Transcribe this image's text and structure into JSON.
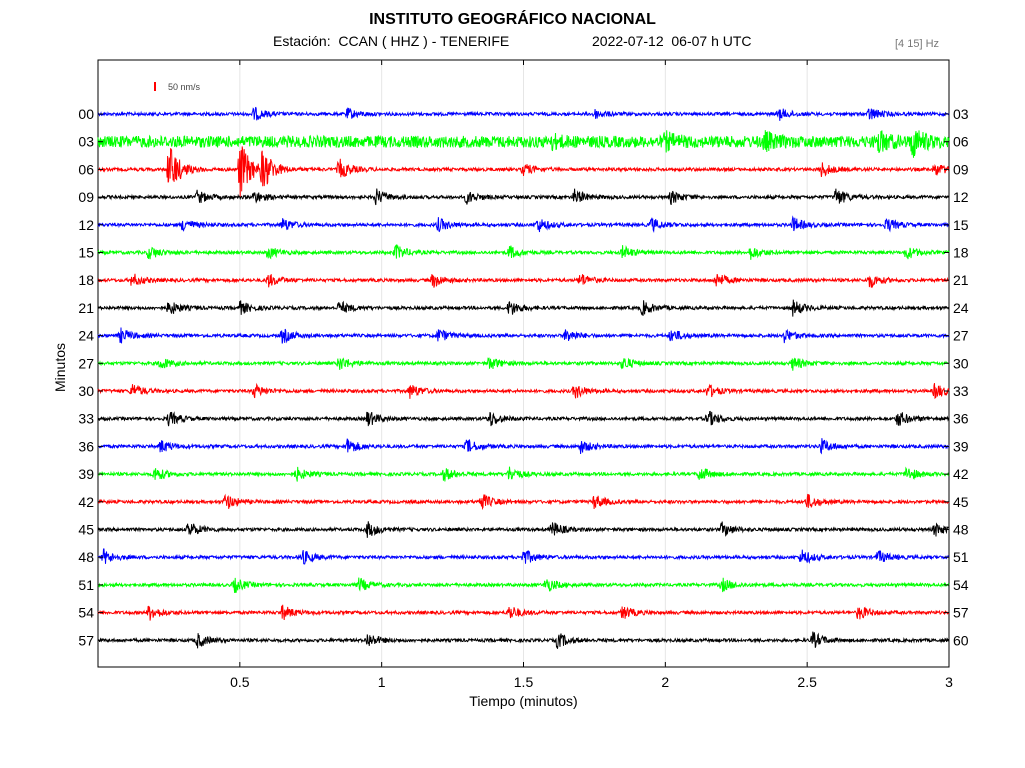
{
  "header": {
    "title": "INSTITUTO GEOGRÁFICO NACIONAL",
    "station_label": "Estación:  CCAN ( HHZ ) - TENERIFE",
    "datetime_label": "2022-07-12  06-07 h UTC",
    "filter_label": "[4 15] Hz"
  },
  "colors": {
    "blue": "#0000ff",
    "green": "#00ff00",
    "red": "#ff0000",
    "black": "#000000"
  },
  "chart_data": {
    "type": "line",
    "title": "INSTITUTO GEOGRÁFICO NACIONAL",
    "xlabel": "Tiempo (minutos)",
    "ylabel": "Minutos",
    "xlim": [
      0,
      3
    ],
    "x_ticks": [
      0.5,
      1,
      1.5,
      2,
      2.5,
      3
    ],
    "x_tick_labels": [
      "0.5",
      "1",
      "1.5",
      "2",
      "2.5",
      "3"
    ],
    "scale_bar_label": "50 nm/s",
    "grid": "vertical",
    "series": [
      {
        "name": "00",
        "right_label": "03",
        "color": "blue",
        "events": [
          [
            0.55,
            0.5
          ],
          [
            0.88,
            0.4
          ],
          [
            1.75,
            0.35
          ],
          [
            2.4,
            0.45
          ],
          [
            2.72,
            0.5
          ]
        ]
      },
      {
        "name": "03",
        "right_label": "06",
        "color": "green",
        "noise": 0.45,
        "events": [
          [
            1.6,
            0.35
          ],
          [
            2.0,
            0.5
          ],
          [
            2.35,
            0.55
          ],
          [
            2.75,
            0.7
          ],
          [
            2.87,
            1.0
          ]
        ]
      },
      {
        "name": "06",
        "right_label": "09",
        "color": "red",
        "events": [
          [
            0.25,
            2.0
          ],
          [
            0.5,
            2.3
          ],
          [
            0.58,
            1.5
          ],
          [
            0.85,
            0.8
          ],
          [
            1.5,
            0.45
          ],
          [
            2.55,
            0.55
          ],
          [
            2.95,
            0.5
          ]
        ]
      },
      {
        "name": "09",
        "right_label": "12",
        "color": "black",
        "events": [
          [
            0.35,
            0.5
          ],
          [
            0.55,
            0.45
          ],
          [
            0.98,
            0.6
          ],
          [
            1.3,
            0.5
          ],
          [
            1.68,
            0.55
          ],
          [
            2.02,
            0.5
          ],
          [
            2.6,
            0.7
          ]
        ]
      },
      {
        "name": "12",
        "right_label": "15",
        "color": "blue",
        "events": [
          [
            0.3,
            0.5
          ],
          [
            0.65,
            0.5
          ],
          [
            1.2,
            0.5
          ],
          [
            1.55,
            0.55
          ],
          [
            1.95,
            0.5
          ],
          [
            2.45,
            0.55
          ],
          [
            2.78,
            0.5
          ]
        ]
      },
      {
        "name": "15",
        "right_label": "18",
        "color": "green",
        "events": [
          [
            0.18,
            0.5
          ],
          [
            0.6,
            0.45
          ],
          [
            1.05,
            0.55
          ],
          [
            1.45,
            0.5
          ],
          [
            1.85,
            0.5
          ],
          [
            2.3,
            0.5
          ],
          [
            2.85,
            0.5
          ]
        ]
      },
      {
        "name": "18",
        "right_label": "21",
        "color": "red",
        "events": [
          [
            0.12,
            0.5
          ],
          [
            0.6,
            0.5
          ],
          [
            1.18,
            0.55
          ],
          [
            1.7,
            0.5
          ],
          [
            2.18,
            0.55
          ],
          [
            2.72,
            0.55
          ]
        ]
      },
      {
        "name": "21",
        "right_label": "24",
        "color": "black",
        "events": [
          [
            0.25,
            0.55
          ],
          [
            0.5,
            0.5
          ],
          [
            0.85,
            0.5
          ],
          [
            1.45,
            0.6
          ],
          [
            1.92,
            0.55
          ],
          [
            2.45,
            0.6
          ]
        ]
      },
      {
        "name": "24",
        "right_label": "27",
        "color": "blue",
        "events": [
          [
            0.08,
            0.55
          ],
          [
            0.65,
            0.55
          ],
          [
            1.2,
            0.5
          ],
          [
            1.65,
            0.5
          ],
          [
            2.02,
            0.5
          ],
          [
            2.42,
            0.5
          ]
        ]
      },
      {
        "name": "27",
        "right_label": "30",
        "color": "green",
        "events": [
          [
            0.22,
            0.45
          ],
          [
            0.85,
            0.55
          ],
          [
            1.38,
            0.5
          ],
          [
            1.85,
            0.5
          ],
          [
            2.45,
            0.5
          ]
        ]
      },
      {
        "name": "30",
        "right_label": "33",
        "color": "red",
        "events": [
          [
            0.12,
            0.55
          ],
          [
            0.55,
            0.5
          ],
          [
            1.1,
            0.55
          ],
          [
            1.68,
            0.55
          ],
          [
            2.15,
            0.5
          ],
          [
            2.95,
            0.6
          ]
        ]
      },
      {
        "name": "33",
        "right_label": "36",
        "color": "black",
        "events": [
          [
            0.25,
            0.55
          ],
          [
            0.95,
            0.6
          ],
          [
            1.38,
            0.6
          ],
          [
            2.15,
            0.6
          ],
          [
            2.82,
            0.6
          ]
        ]
      },
      {
        "name": "36",
        "right_label": "39",
        "color": "blue",
        "events": [
          [
            0.22,
            0.5
          ],
          [
            0.88,
            0.6
          ],
          [
            1.3,
            0.55
          ],
          [
            1.7,
            0.5
          ],
          [
            2.55,
            0.55
          ]
        ]
      },
      {
        "name": "39",
        "right_label": "42",
        "color": "green",
        "events": [
          [
            0.2,
            0.55
          ],
          [
            0.7,
            0.5
          ],
          [
            1.22,
            0.5
          ],
          [
            1.45,
            0.55
          ],
          [
            2.12,
            0.55
          ],
          [
            2.85,
            0.55
          ]
        ]
      },
      {
        "name": "42",
        "right_label": "45",
        "color": "red",
        "events": [
          [
            0.45,
            0.6
          ],
          [
            1.35,
            0.65
          ],
          [
            1.75,
            0.55
          ],
          [
            2.5,
            0.55
          ]
        ]
      },
      {
        "name": "45",
        "right_label": "48",
        "color": "black",
        "events": [
          [
            0.32,
            0.6
          ],
          [
            0.95,
            0.6
          ],
          [
            1.6,
            0.6
          ],
          [
            2.2,
            0.55
          ],
          [
            2.95,
            0.5
          ]
        ]
      },
      {
        "name": "48",
        "right_label": "51",
        "color": "blue",
        "events": [
          [
            0.02,
            0.55
          ],
          [
            0.72,
            0.55
          ],
          [
            1.5,
            0.6
          ],
          [
            2.48,
            0.6
          ],
          [
            2.75,
            0.5
          ]
        ]
      },
      {
        "name": "51",
        "right_label": "54",
        "color": "green",
        "events": [
          [
            0.48,
            0.55
          ],
          [
            0.92,
            0.5
          ],
          [
            1.58,
            0.55
          ],
          [
            2.2,
            0.5
          ]
        ]
      },
      {
        "name": "54",
        "right_label": "57",
        "color": "red",
        "events": [
          [
            0.18,
            0.6
          ],
          [
            0.65,
            0.55
          ],
          [
            1.45,
            0.55
          ],
          [
            1.85,
            0.5
          ],
          [
            2.68,
            0.55
          ]
        ]
      },
      {
        "name": "57",
        "right_label": "60",
        "color": "black",
        "events": [
          [
            0.35,
            0.55
          ],
          [
            0.95,
            0.55
          ],
          [
            1.62,
            0.6
          ],
          [
            2.52,
            0.6
          ]
        ]
      }
    ]
  }
}
